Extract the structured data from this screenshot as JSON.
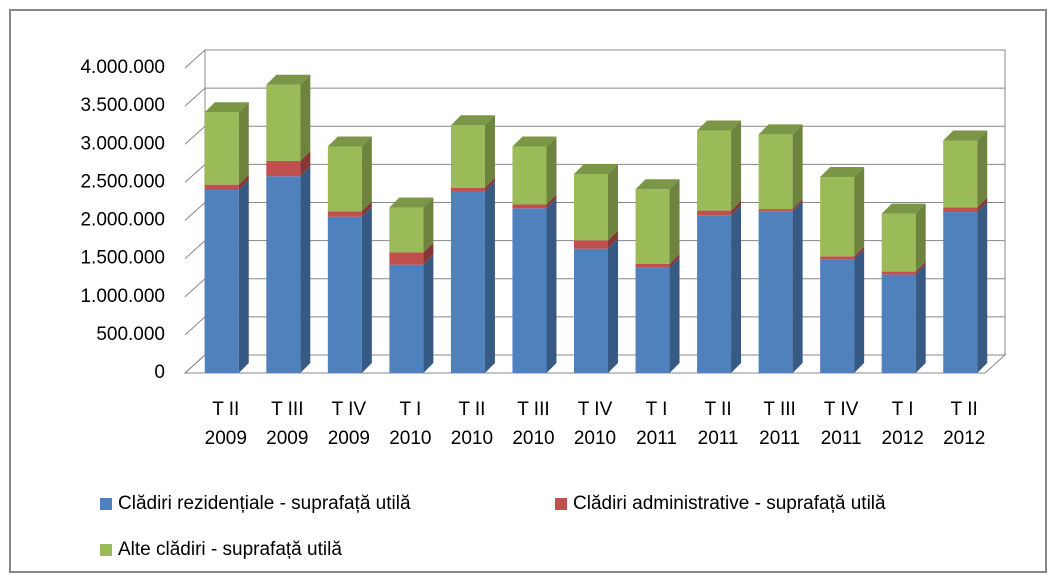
{
  "chart_data": {
    "type": "bar",
    "stacked": true,
    "categories": [
      [
        "T II",
        "2009"
      ],
      [
        "T III",
        "2009"
      ],
      [
        "T IV",
        "2009"
      ],
      [
        "T I",
        "2010"
      ],
      [
        "T II",
        "2010"
      ],
      [
        "T III",
        "2010"
      ],
      [
        "T IV",
        "2010"
      ],
      [
        "T I",
        "2011"
      ],
      [
        "T II",
        "2011"
      ],
      [
        "T III",
        "2011"
      ],
      [
        "T IV",
        "2011"
      ],
      [
        "T I",
        "2012"
      ],
      [
        "T II",
        "2012"
      ]
    ],
    "series": [
      {
        "name": "Clădiri rezidențiale - suprafață utilă",
        "color": "#4f81bd",
        "values": [
          2400000,
          2580000,
          2050000,
          1420000,
          2380000,
          2160000,
          1630000,
          1380000,
          2070000,
          2120000,
          1490000,
          1290000,
          2110000
        ]
      },
      {
        "name": "Clădiri administrative - suprafață utilă",
        "color": "#c0504d",
        "values": [
          70000,
          200000,
          70000,
          160000,
          50000,
          50000,
          110000,
          50000,
          60000,
          30000,
          40000,
          40000,
          60000
        ]
      },
      {
        "name": "Alte clădiri - suprafață utilă",
        "color": "#9bbb59",
        "values": [
          950000,
          1000000,
          850000,
          590000,
          820000,
          760000,
          870000,
          980000,
          1050000,
          980000,
          1040000,
          760000,
          880000
        ]
      }
    ],
    "ylim": [
      0,
      4000000
    ],
    "yticks": [
      0,
      {
        "value": 500000,
        "label": "500.000"
      },
      {
        "value": 1000000,
        "label": "1.000.000"
      },
      {
        "value": 1500000,
        "label": "1.500.000"
      },
      {
        "value": 2000000,
        "label": "2.000.000"
      },
      {
        "value": 2500000,
        "label": "2.500.000"
      },
      {
        "value": 3000000,
        "label": "3.000.000"
      },
      {
        "value": 3500000,
        "label": "3.500.000"
      },
      {
        "value": 4000000,
        "label": "4.000.000"
      }
    ],
    "grid": true
  }
}
